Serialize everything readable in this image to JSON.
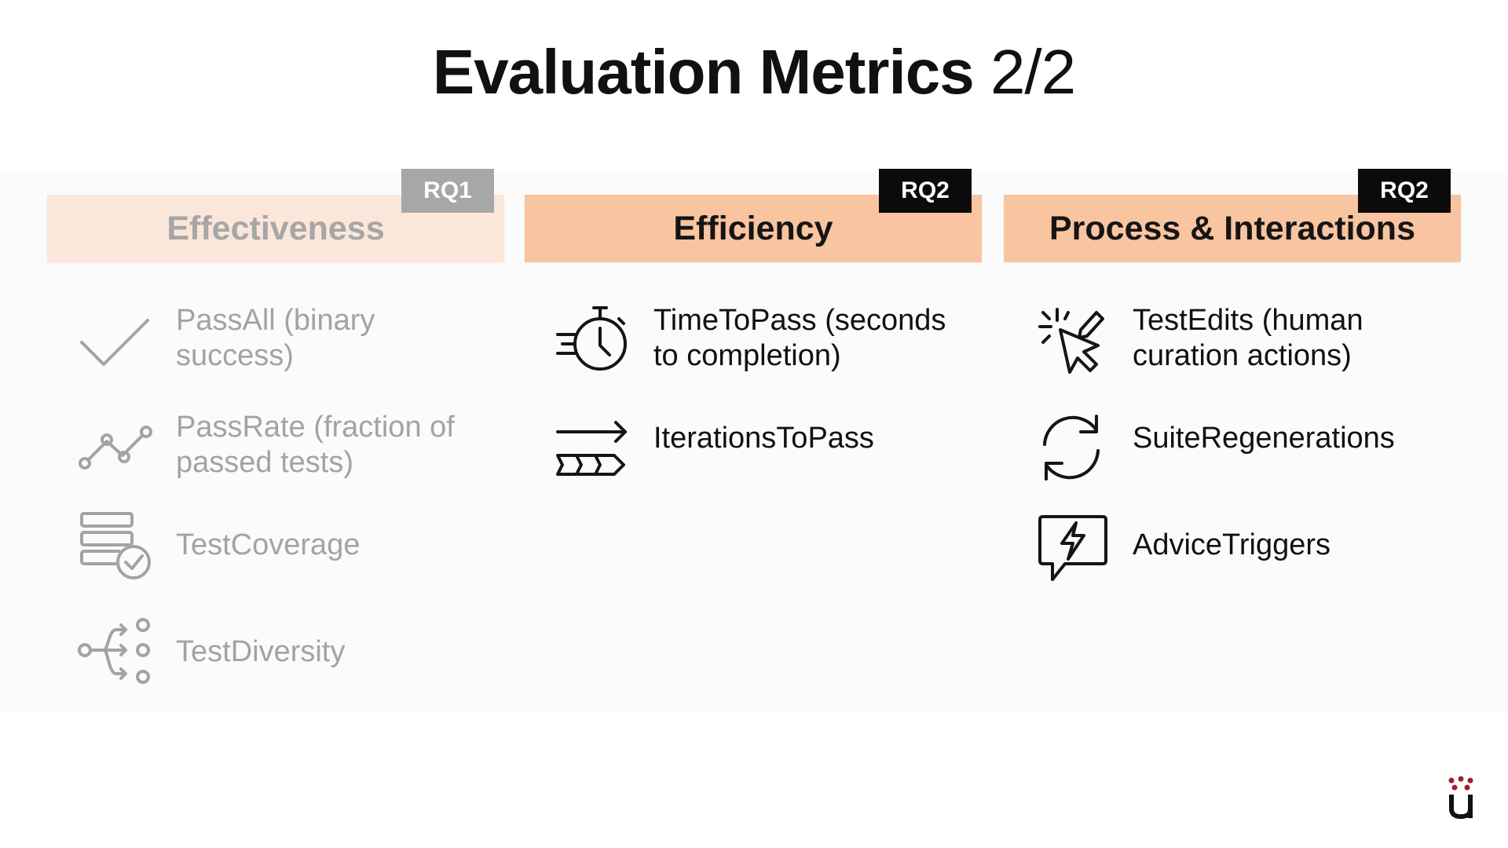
{
  "slide": {
    "title_bold": "Evaluation Metrics",
    "title_light": "2/2"
  },
  "columns": [
    {
      "header": "Effectiveness",
      "badge": "RQ1",
      "items": [
        {
          "label": "PassAll (binary success)",
          "icon": "checkmark-icon"
        },
        {
          "label": "PassRate (fraction of passed tests)",
          "icon": "line-trend-icon"
        },
        {
          "label": "TestCoverage",
          "icon": "coverage-stack-icon"
        },
        {
          "label": "TestDiversity",
          "icon": "branching-icon"
        }
      ]
    },
    {
      "header": "Efficiency",
      "badge": "RQ2",
      "items": [
        {
          "label": "TimeToPass (seconds to completion)",
          "icon": "stopwatch-icon"
        },
        {
          "label": "IterationsToPass",
          "icon": "iterations-arrow-icon"
        }
      ]
    },
    {
      "header": "Process & Interactions",
      "badge": "RQ2",
      "items": [
        {
          "label": "TestEdits (human curation actions)",
          "icon": "cursor-edit-icon"
        },
        {
          "label": "SuiteRegenerations",
          "icon": "refresh-icon"
        },
        {
          "label": "AdviceTriggers",
          "icon": "lightning-bubble-icon"
        }
      ]
    }
  ],
  "colors": {
    "header_active": "#f9c4a0",
    "header_faded": "#fbe6da",
    "badge_active": "#0b0b0b",
    "badge_faded": "#a7a7a7",
    "faded_text": "#a3a3a3",
    "logo_red": "#a01c2c"
  }
}
